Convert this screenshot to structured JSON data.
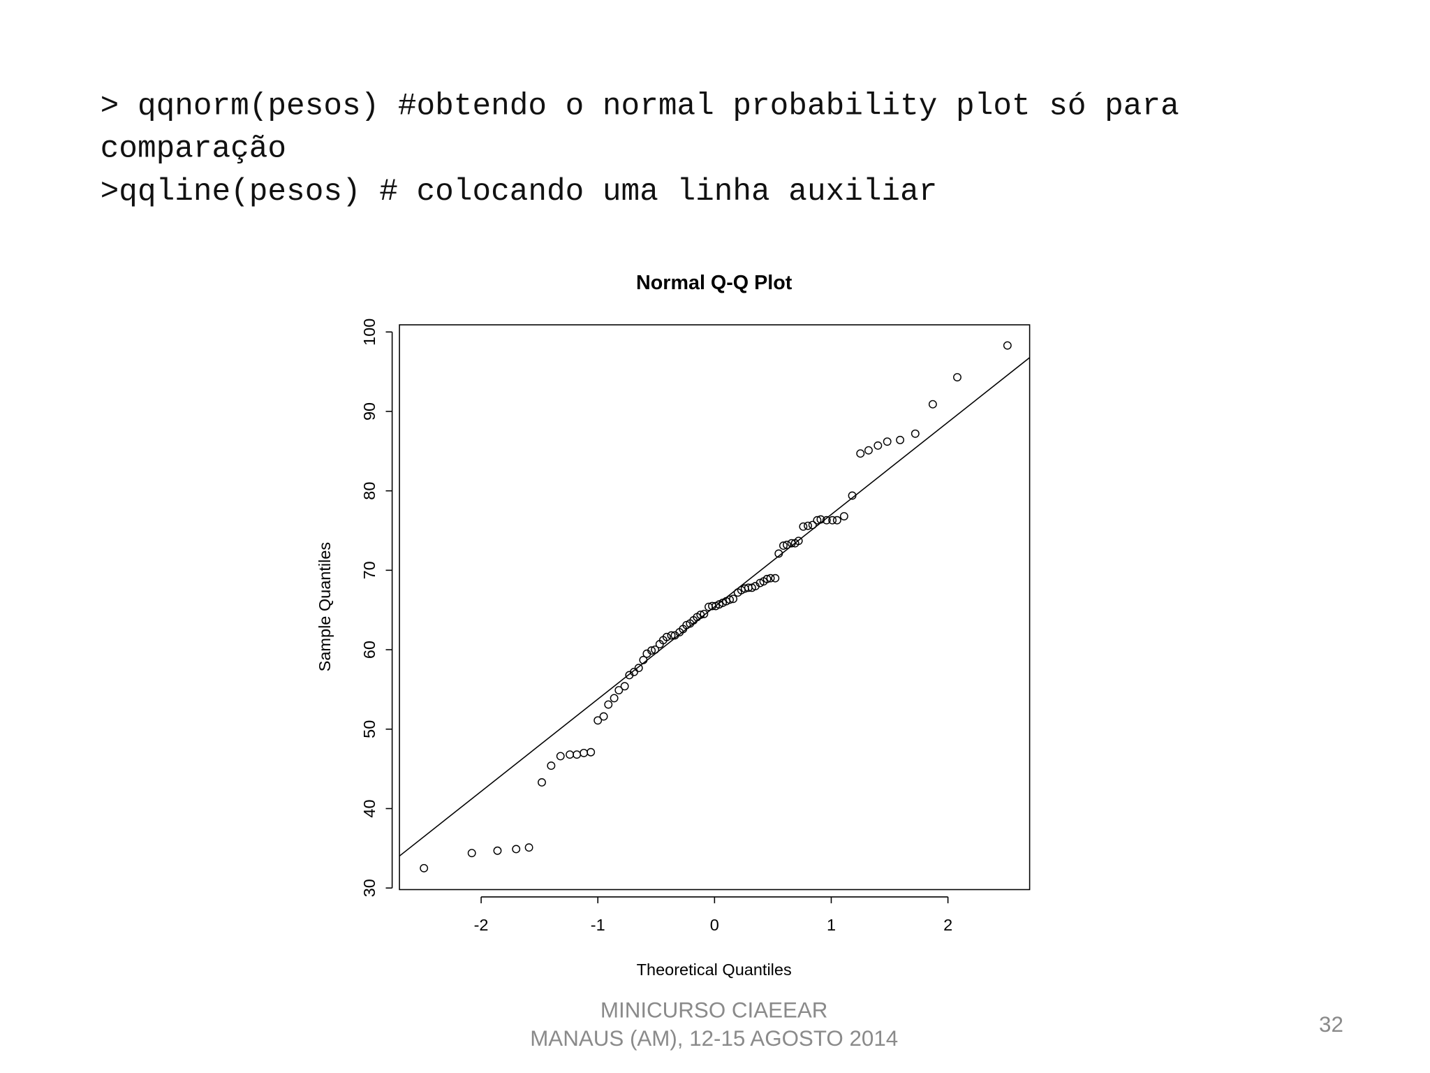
{
  "code": [
    "> qqnorm(pesos) #obtendo o normal probability plot só para",
    "comparação",
    ">qqline(pesos) # colocando uma linha auxiliar"
  ],
  "chart_data": {
    "type": "scatter",
    "title": "Normal Q-Q Plot",
    "x_label": "Theoretical Quantiles",
    "y_label": "Sample Quantiles",
    "xlim": [
      -2.7,
      2.7
    ],
    "ylim": [
      29.8,
      100.9
    ],
    "xticks": [
      -2,
      -1,
      0,
      1,
      2
    ],
    "yticks": [
      30,
      40,
      50,
      60,
      70,
      80,
      90,
      100
    ],
    "color": "#000000",
    "grid": false,
    "x": [
      -2.49,
      -2.08,
      -1.86,
      -1.7,
      -1.59,
      -1.48,
      -1.4,
      -1.32,
      -1.24,
      -1.18,
      -1.12,
      -1.06,
      -1.0,
      -0.95,
      -0.91,
      -0.86,
      -0.82,
      -0.77,
      -0.73,
      -0.69,
      -0.65,
      -0.61,
      -0.58,
      -0.54,
      -0.51,
      -0.47,
      -0.44,
      -0.41,
      -0.37,
      -0.34,
      -0.3,
      -0.27,
      -0.24,
      -0.21,
      -0.18,
      -0.15,
      -0.12,
      -0.09,
      -0.05,
      -0.02,
      0.01,
      0.04,
      0.07,
      0.1,
      0.13,
      0.16,
      0.2,
      0.23,
      0.26,
      0.29,
      0.32,
      0.35,
      0.39,
      0.42,
      0.45,
      0.48,
      0.52,
      0.55,
      0.59,
      0.62,
      0.66,
      0.69,
      0.72,
      0.76,
      0.8,
      0.84,
      0.88,
      0.91,
      0.96,
      1.01,
      1.05,
      1.11,
      1.18,
      1.25,
      1.32,
      1.4,
      1.48,
      1.59,
      1.72,
      1.87,
      2.08,
      2.51
    ],
    "values": [
      32.5,
      34.4,
      34.7,
      34.9,
      35.1,
      43.3,
      45.4,
      46.6,
      46.8,
      46.8,
      47.0,
      47.1,
      51.1,
      51.6,
      53.1,
      53.9,
      54.9,
      55.4,
      56.8,
      57.2,
      57.7,
      58.7,
      59.5,
      59.9,
      60.0,
      60.7,
      61.2,
      61.6,
      61.8,
      61.8,
      62.2,
      62.6,
      63.1,
      63.3,
      63.7,
      64.1,
      64.4,
      64.5,
      65.4,
      65.5,
      65.5,
      65.7,
      65.9,
      66.1,
      66.3,
      66.4,
      67.2,
      67.5,
      67.7,
      67.8,
      67.8,
      68.0,
      68.4,
      68.6,
      68.9,
      69.0,
      69.0,
      72.1,
      73.1,
      73.2,
      73.4,
      73.4,
      73.7,
      75.5,
      75.6,
      75.7,
      76.3,
      76.4,
      76.3,
      76.3,
      76.3,
      76.8,
      79.4,
      84.7,
      85.1,
      85.7,
      86.2,
      86.4,
      87.2,
      90.9,
      94.3,
      98.3
    ],
    "qqline": {
      "intercept": 65.4,
      "slope": 11.62
    }
  },
  "footer": [
    "MINICURSO CIAEEAR",
    "MANAUS (AM), 12-15 AGOSTO 2014"
  ],
  "page_number": "32"
}
